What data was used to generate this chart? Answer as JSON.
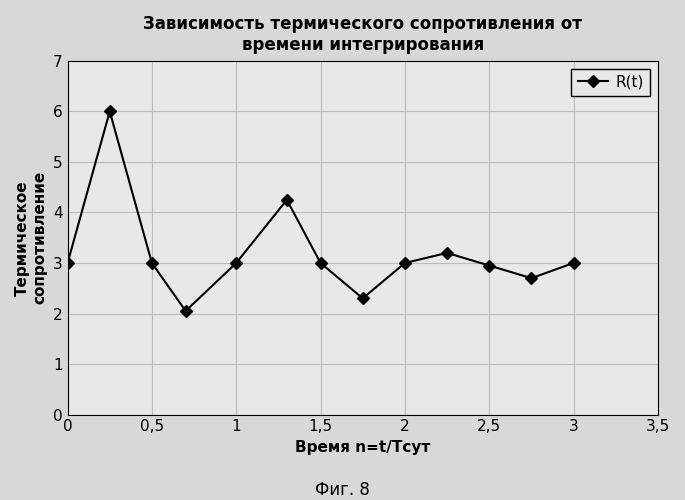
{
  "title": "Зависимость термического сопротивления от\nвремени интегрирования",
  "xlabel": "Время n=t/Тсут",
  "ylabel": "Термическое\nсопротивление",
  "legend_label": "R(t)",
  "x": [
    0,
    0.25,
    0.5,
    0.7,
    1.0,
    1.3,
    1.5,
    1.75,
    2.0,
    2.25,
    2.5,
    2.75,
    3.0
  ],
  "y": [
    3.0,
    6.0,
    3.0,
    2.05,
    3.0,
    4.25,
    3.0,
    2.3,
    3.0,
    3.2,
    2.95,
    2.7,
    3.0
  ],
  "xlim": [
    0,
    3.5
  ],
  "ylim": [
    0,
    7
  ],
  "xticks": [
    0,
    0.5,
    1,
    1.5,
    2,
    2.5,
    3,
    3.5
  ],
  "xtick_labels": [
    "0",
    "0,5",
    "1",
    "1,5",
    "2",
    "2,5",
    "3",
    "3,5"
  ],
  "yticks": [
    0,
    1,
    2,
    3,
    4,
    5,
    6,
    7
  ],
  "ytick_labels": [
    "0",
    "1",
    "2",
    "3",
    "4",
    "5",
    "6",
    "7"
  ],
  "line_color": "#000000",
  "marker": "D",
  "marker_size": 6,
  "marker_facecolor": "#000000",
  "line_width": 1.5,
  "grid_color": "#bbbbbb",
  "plot_bg_color": "#e8e8e8",
  "outer_bg_color": "#d8d8d8",
  "title_fontsize": 12,
  "label_fontsize": 11,
  "tick_fontsize": 11,
  "legend_fontsize": 11,
  "caption": "Фиг. 8",
  "caption_fontsize": 12
}
